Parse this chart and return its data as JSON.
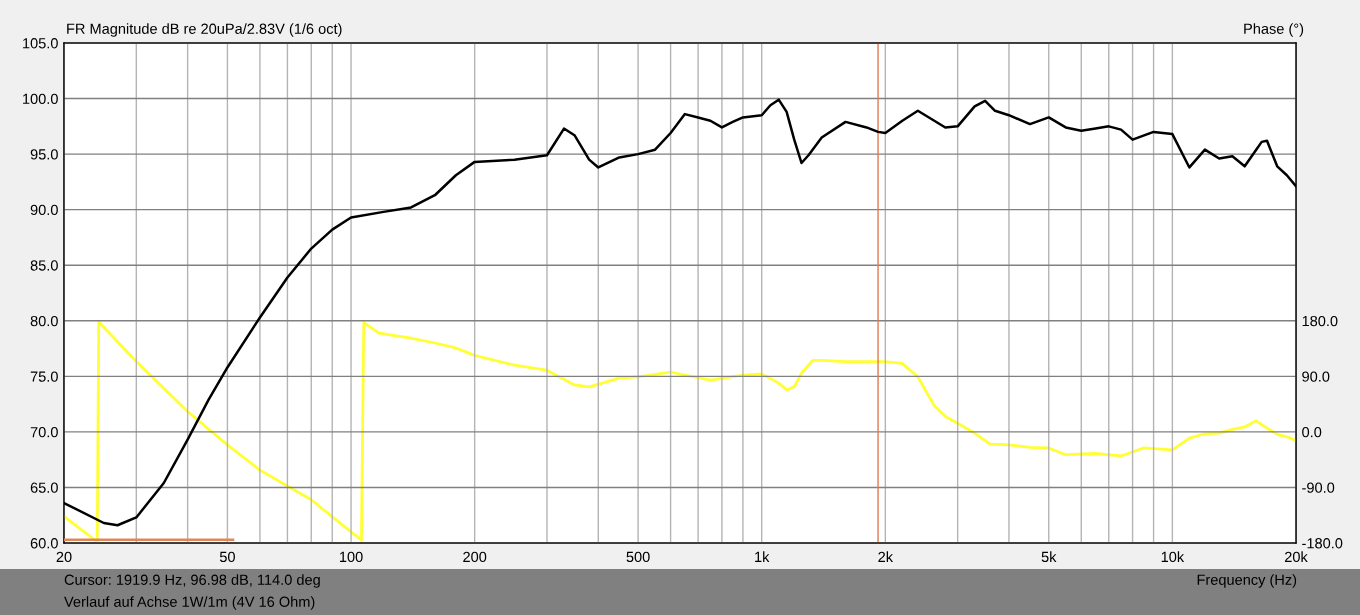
{
  "chart_data": {
    "type": "line",
    "title": "FR Magnitude dB re 20uPa/2.83V (1/6 oct)",
    "xlabel": "Frequency (Hz)",
    "y2label": "Phase (°)",
    "annotations": [
      "Cursor: 1919.9 Hz, 96.98 dB, 114.0 deg",
      "Verlauf auf Achse 1W/1m (4V 16 Ohm)"
    ],
    "log": "x",
    "grid": true,
    "line_style": "solid",
    "marker": "none",
    "xlim": [
      20,
      20000
    ],
    "xticks": [
      20,
      {
        "value": 30,
        "label": null
      },
      {
        "value": 40,
        "label": null
      },
      50,
      {
        "value": 60,
        "label": null
      },
      {
        "value": 70,
        "label": null
      },
      {
        "value": 80,
        "label": null
      },
      {
        "value": 90,
        "label": null
      },
      100,
      200,
      {
        "value": 300,
        "label": null
      },
      {
        "value": 400,
        "label": null
      },
      500,
      {
        "value": 600,
        "label": null
      },
      {
        "value": 700,
        "label": null
      },
      {
        "value": 800,
        "label": null
      },
      {
        "value": 900,
        "label": null
      },
      {
        "value": 1000,
        "label": "1k"
      },
      {
        "value": 2000,
        "label": "2k"
      },
      {
        "value": 3000,
        "label": null
      },
      {
        "value": 4000,
        "label": null
      },
      {
        "value": 5000,
        "label": "5k"
      },
      {
        "value": 6000,
        "label": null
      },
      {
        "value": 7000,
        "label": null
      },
      {
        "value": 8000,
        "label": null
      },
      {
        "value": 9000,
        "label": null
      },
      {
        "value": 10000,
        "label": "10k"
      },
      {
        "value": 20000,
        "label": "20k"
      }
    ],
    "ylim": [
      60,
      105
    ],
    "yticks": [
      {
        "value": 60,
        "label": "60.0"
      },
      {
        "value": 65,
        "label": "65.0"
      },
      {
        "value": 70,
        "label": "70.0"
      },
      {
        "value": 75,
        "label": "75.0"
      },
      {
        "value": 80,
        "label": "80.0"
      },
      {
        "value": 85,
        "label": "85.0"
      },
      {
        "value": 90,
        "label": "90.0"
      },
      {
        "value": 95,
        "label": "95.0"
      },
      {
        "value": 100,
        "label": "100.0"
      },
      {
        "value": 105,
        "label": "105.0"
      }
    ],
    "y2lim": [
      -180,
      630
    ],
    "y2ticks": [
      {
        "value": -180,
        "label": "-180.0"
      },
      {
        "value": -90,
        "label": "-90.0"
      },
      {
        "value": 0,
        "label": "0.0"
      },
      {
        "value": 90,
        "label": "90.0"
      },
      {
        "value": 180,
        "label": "180.0"
      }
    ],
    "ref_lines": [
      {
        "axis": "x",
        "value": 1919.9,
        "color": "#e07a50"
      }
    ],
    "series": [
      {
        "color": "#ffff33",
        "axis": "y2",
        "x": [
          20,
          24.1,
          24.3,
          30,
          40,
          50,
          60,
          80,
          100,
          106,
          107.4,
          117,
          140,
          160,
          180,
          200,
          250,
          300,
          350,
          380,
          450,
          500,
          600,
          650,
          750,
          900,
          1000,
          1100,
          1150,
          1200,
          1250,
          1330,
          1400,
          1600,
          1920,
          2000,
          2200,
          2400,
          2640,
          2800,
          3000,
          3300,
          3600,
          4000,
          4500,
          5000,
          5500,
          6500,
          7500,
          8500,
          10000,
          11000,
          12000,
          13000,
          14000,
          15000,
          16000,
          17000,
          18000,
          19000,
          20000
        ],
        "values": [
          -137,
          -178,
          178,
          114,
          33,
          -21,
          -62,
          -110,
          -162,
          -175,
          177,
          160,
          152,
          144,
          136,
          124,
          108,
          100,
          76,
          73,
          87,
          89,
          97,
          92,
          84,
          92,
          94,
          79,
          68,
          73,
          95,
          116,
          116,
          114,
          114,
          114,
          111,
          89,
          41,
          25,
          14,
          -2,
          -20,
          -21,
          -25,
          -26,
          -37,
          -35,
          -39,
          -26,
          -29,
          -10,
          -3,
          -2,
          4,
          8,
          18,
          6,
          -4,
          -8,
          -14
        ]
      },
      {
        "color": "#000000",
        "x": [
          20,
          25,
          27,
          30,
          35,
          40,
          45,
          50,
          60,
          70,
          80,
          90,
          100,
          120,
          140,
          160,
          180,
          200,
          250,
          300,
          330,
          350,
          380,
          400,
          450,
          500,
          550,
          600,
          650,
          700,
          750,
          800,
          850,
          900,
          1000,
          1050,
          1100,
          1150,
          1200,
          1250,
          1300,
          1400,
          1600,
          1800,
          1920,
          2000,
          2200,
          2400,
          2800,
          3000,
          3300,
          3500,
          3700,
          4000,
          4500,
          5000,
          5500,
          6000,
          6500,
          7000,
          7500,
          8000,
          9000,
          10000,
          11000,
          12000,
          13000,
          14000,
          15000,
          16000,
          16500,
          17000,
          18000,
          19000,
          20000
        ],
        "values": [
          63.6,
          61.8,
          61.6,
          62.3,
          65.4,
          69.3,
          72.9,
          75.8,
          80.3,
          83.9,
          86.5,
          88.2,
          89.3,
          89.8,
          90.2,
          91.3,
          93.1,
          94.3,
          94.5,
          94.9,
          97.3,
          96.7,
          94.5,
          93.8,
          94.7,
          95.0,
          95.4,
          96.9,
          98.6,
          98.3,
          98.0,
          97.4,
          97.9,
          98.3,
          98.5,
          99.4,
          99.9,
          98.8,
          96.3,
          94.2,
          94.9,
          96.5,
          97.9,
          97.4,
          97.0,
          96.9,
          98.0,
          98.9,
          97.4,
          97.5,
          99.3,
          99.8,
          98.9,
          98.5,
          97.7,
          98.3,
          97.4,
          97.1,
          97.3,
          97.5,
          97.2,
          96.3,
          97.0,
          96.8,
          93.8,
          95.4,
          94.6,
          94.8,
          93.9,
          95.4,
          96.1,
          96.2,
          93.9,
          93.1,
          92.1
        ]
      },
      {
        "color": "#e0875a",
        "x": [
          20,
          51.6
        ],
        "values": [
          60.3,
          60.3
        ]
      }
    ]
  }
}
